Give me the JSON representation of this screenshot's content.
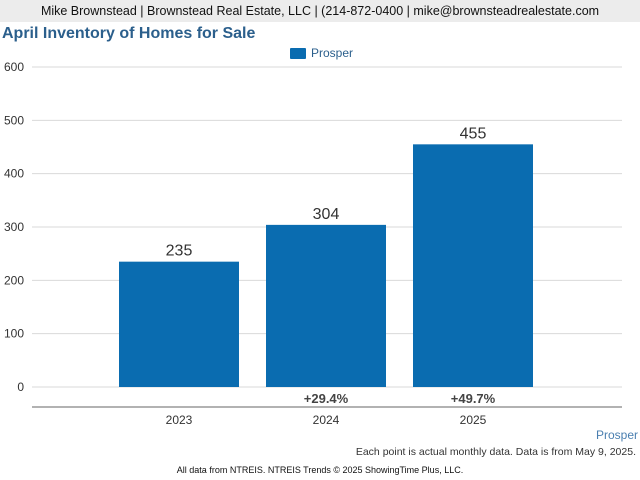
{
  "header": {
    "contact": "Mike Brownstead | Brownstead Real Estate, LLC | (214-872-0400 | mike@brownsteadrealestate.com"
  },
  "chart_data": {
    "type": "bar",
    "title": "April Inventory of Homes for Sale",
    "categories": [
      "2023",
      "2024",
      "2025"
    ],
    "series": [
      {
        "name": "Prosper",
        "values": [
          235,
          304,
          455
        ],
        "color": "#0a6cb0"
      }
    ],
    "data_labels": [
      "235",
      "304",
      "455"
    ],
    "change_labels": [
      "",
      "+29.4%",
      "+49.7%"
    ],
    "yticks": [
      "0",
      "100",
      "200",
      "300",
      "400",
      "500",
      "600"
    ],
    "ylim": [
      0,
      600
    ],
    "grid": true,
    "legend_position": "top-center"
  },
  "source_label": "Prosper",
  "note": "Each point is actual monthly data. Data is from May 9, 2025.",
  "footer": "All data from NTREIS. NTREIS Trends © 2025 ShowingTime Plus, LLC."
}
